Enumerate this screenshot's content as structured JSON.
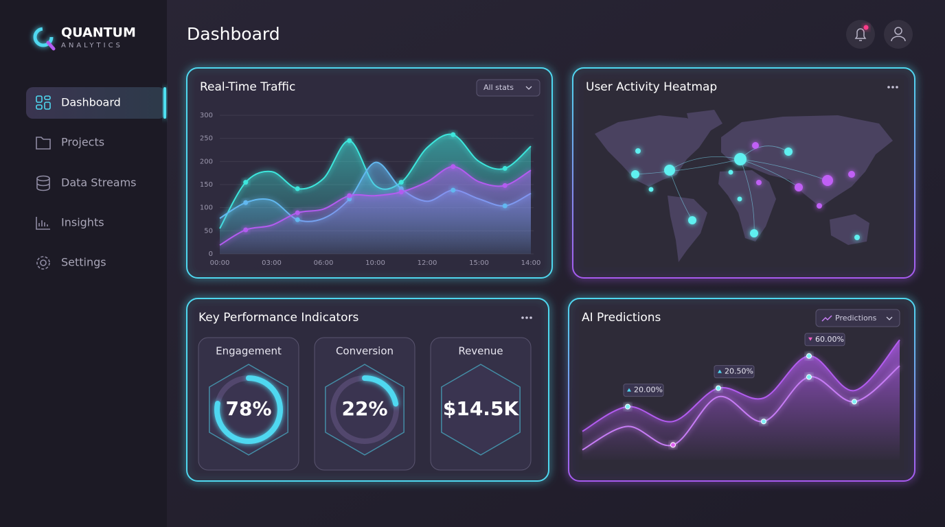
{
  "brand": {
    "name": "QUANTUM",
    "tagline": "ANALYTICS"
  },
  "nav": [
    "Dashboard",
    "Projects",
    "Data Streams",
    "Insights",
    "Settings"
  ],
  "header": {
    "title": "Dashboard"
  },
  "traffic": {
    "type": "line",
    "title": "Real-Time Traffic",
    "filter": "All stats",
    "categories": [
      "00:00",
      null,
      "03:00",
      null,
      "06:00",
      null,
      "10:00",
      null,
      "12:00",
      null,
      "15:00",
      null,
      "14:00"
    ],
    "ylim": [
      0,
      300
    ],
    "yticks": [
      0,
      50,
      100,
      150,
      200,
      250,
      300
    ],
    "grid": true,
    "series": [
      {
        "color": "#3ee6dc",
        "values": [
          55,
          155,
          178,
          141,
          163,
          245,
          148,
          155,
          230,
          258,
          200,
          185,
          233
        ]
      },
      {
        "color": "#62b8f0",
        "values": [
          77,
          111,
          116,
          74,
          77,
          119,
          198,
          141,
          114,
          138,
          119,
          104,
          131
        ]
      },
      {
        "color": "#b35cf0",
        "values": [
          19,
          52,
          62,
          89,
          97,
          126,
          126,
          134,
          156,
          189,
          156,
          148,
          181
        ]
      }
    ]
  },
  "heatmap": {
    "title": "User Activity Heatmap"
  },
  "kpis": {
    "title": "Key Performance Indicators",
    "ringlim": [
      0,
      100
    ],
    "labels": [
      "Engagement",
      "Conversion",
      "Revenue"
    ],
    "values": [
      78,
      22,
      14500
    ],
    "value_labels": [
      "78%",
      "22%",
      "$14.5K"
    ],
    "ring": [
      true,
      true,
      false
    ],
    "color": "#4fd8f0"
  },
  "predictions": {
    "type": "area",
    "title": "AI Predictions",
    "filter": "Predictions",
    "ylim": [
      0,
      100
    ],
    "series": [
      {
        "color": "#b35cf0",
        "values": [
          23,
          43,
          31,
          58,
          50,
          84,
          56,
          97
        ]
      },
      {
        "color": "#c77df5",
        "values": [
          8,
          27,
          12,
          51,
          31,
          67,
          47,
          76
        ]
      }
    ],
    "annotations": [
      "20.00%",
      "20.50%",
      "60.00%"
    ]
  }
}
